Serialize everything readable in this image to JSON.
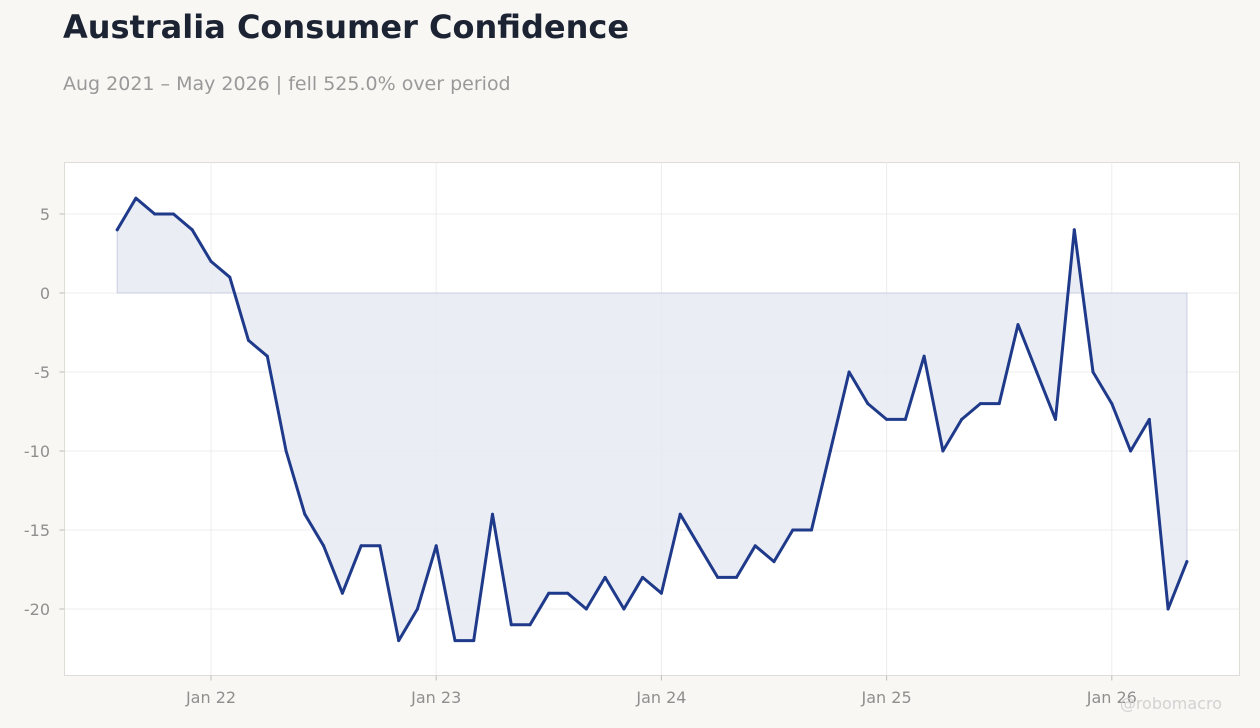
{
  "title": "Australia Consumer Confidence",
  "subtitle": "Aug 2021 – May 2026 | fell 525.0% over period",
  "watermark": "@robomacro",
  "colors": {
    "line": "#1f3a8a",
    "fill": "#e8eaf2",
    "background": "#f8f7f4",
    "plot": "#ffffff"
  },
  "chart_data": {
    "type": "area",
    "title": "Australia Consumer Confidence",
    "x": [
      "2021-08",
      "2021-09",
      "2021-10",
      "2021-11",
      "2021-12",
      "2022-01",
      "2022-02",
      "2022-03",
      "2022-04",
      "2022-05",
      "2022-06",
      "2022-07",
      "2022-08",
      "2022-09",
      "2022-10",
      "2022-11",
      "2022-12",
      "2023-01",
      "2023-02",
      "2023-03",
      "2023-04",
      "2023-05",
      "2023-06",
      "2023-07",
      "2023-08",
      "2023-09",
      "2023-10",
      "2023-11",
      "2023-12",
      "2024-01",
      "2024-02",
      "2024-03",
      "2024-04",
      "2024-05",
      "2024-06",
      "2024-07",
      "2024-08",
      "2024-09",
      "2024-10",
      "2024-11",
      "2024-12",
      "2025-01",
      "2025-02",
      "2025-03",
      "2025-04",
      "2025-05",
      "2025-06",
      "2025-07",
      "2025-08",
      "2025-09",
      "2025-10",
      "2025-11",
      "2025-12",
      "2026-01",
      "2026-02",
      "2026-03",
      "2026-04",
      "2026-05"
    ],
    "values": [
      4,
      6,
      5,
      5,
      4,
      2,
      1,
      -3,
      -4,
      -10,
      -14,
      -16,
      -19,
      -16,
      -16,
      -22,
      -20,
      -16,
      -22,
      -22,
      -14,
      -21,
      -21,
      -19,
      -19,
      -20,
      -18,
      -20,
      -18,
      -19,
      -14,
      -16,
      -18,
      -18,
      -16,
      -17,
      -15,
      -15,
      -10,
      -5,
      -7,
      -8,
      -8,
      -4,
      -10,
      -8,
      -7,
      -7,
      -2,
      -5,
      -8,
      4,
      -5,
      -7,
      -10,
      -8,
      -20,
      -17
    ],
    "x_ticks": [
      "Jan 22",
      "Jan 23",
      "Jan 24",
      "Jan 25",
      "Jan 26"
    ],
    "y_ticks": [
      5,
      0,
      -5,
      -10,
      -15,
      -20
    ],
    "ylim": [
      -24,
      8
    ],
    "grid": true,
    "xlabel": "",
    "ylabel": ""
  }
}
